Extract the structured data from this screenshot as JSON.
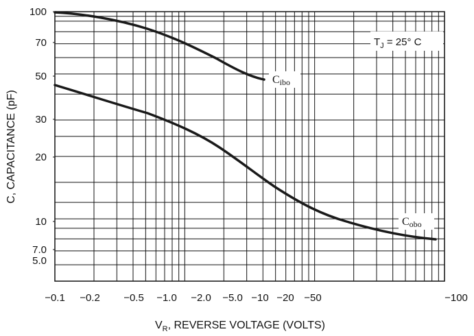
{
  "chart_data": {
    "type": "line",
    "title": "",
    "scale": "log-log",
    "xlabel": {
      "main": "V",
      "sub": "R",
      "rest": ", REVERSE VOLTAGE (VOLTS)"
    },
    "ylabel": "C, CAPACITANCE (pF)",
    "x_tick_labels": [
      "−0.1",
      "−0.2",
      "−0.5",
      "−1.0",
      "−2.0",
      "−5.0",
      "−10",
      "−20",
      "−50",
      "−100"
    ],
    "y_tick_labels": [
      "5.0",
      "7.0",
      "10",
      "20",
      "30",
      "50",
      "70",
      "100"
    ],
    "xlim": [
      0.1,
      100
    ],
    "ylim": [
      5,
      100
    ],
    "annotation": {
      "t": "T",
      "sub": "J",
      "rest": " = 25° C"
    },
    "series": [
      {
        "name": "Cibo",
        "label_main": "C",
        "label_sub": "ibo",
        "x": [
          0.1,
          0.2,
          0.5,
          1.0,
          2.0,
          5.0,
          10
        ],
        "y": [
          98,
          95,
          88,
          80,
          70,
          60,
          47
        ]
      },
      {
        "name": "Cobo",
        "label_main": "C",
        "label_sub": "obo",
        "x": [
          0.1,
          0.2,
          0.5,
          1.0,
          2.0,
          5.0,
          10,
          20,
          50,
          100
        ],
        "y": [
          44,
          40,
          35,
          31,
          27,
          21,
          16,
          12.5,
          9.5,
          8.2
        ]
      }
    ],
    "grid": true
  }
}
